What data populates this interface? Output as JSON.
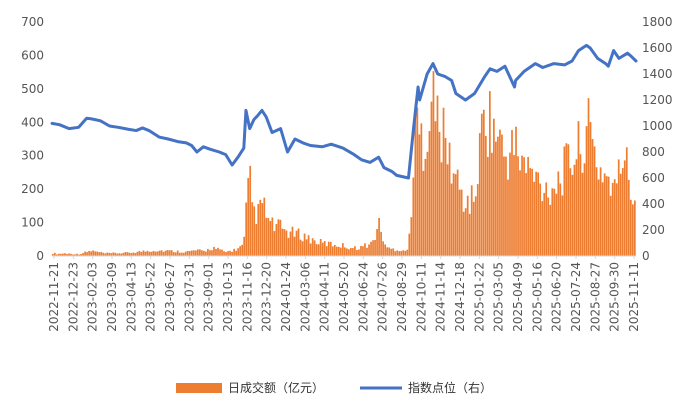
{
  "chart_data": {
    "type": "bar+line",
    "title": "",
    "legend": {
      "placement": "bottom",
      "bar_label": "日成交额（亿元）",
      "line_label": "指数点位（右）"
    },
    "colors": {
      "bar": "#ED7D31",
      "line": "#4472C4",
      "axis": "#D9D9D9",
      "text": "#595959"
    },
    "left_axis": {
      "min": 0,
      "max": 700,
      "ticks": [
        "0",
        "100",
        "200",
        "300",
        "400",
        "500",
        "600",
        "700"
      ]
    },
    "right_axis": {
      "min": 0,
      "max": 1800,
      "ticks": [
        "0",
        "200",
        "400",
        "600",
        "800",
        "1000",
        "1200",
        "1400",
        "1600",
        "1800"
      ]
    },
    "x_axis": {
      "start": "2022-11-21",
      "end": "2025-11-21",
      "tick_labels": [
        "2022-11-21",
        "2022-12-23",
        "2023-02-03",
        "2023-03-09",
        "2023-04-13",
        "2023-05-22",
        "2023-06-27",
        "2023-07-31",
        "2023-09-01",
        "2023-10-13",
        "2023-11-16",
        "2023-12-20",
        "2024-01-24",
        "2024-03-06",
        "2024-04-11",
        "2024-05-20",
        "2024-06-24",
        "2024-07-26",
        "2024-08-29",
        "2024-10-11",
        "2024-11-14",
        "2024-12-18",
        "2025-01-22",
        "2025-03-05",
        "2025-04-09",
        "2025-05-16",
        "2025-06-20",
        "2025-07-24",
        "2025-08-27",
        "2025-09-30",
        "2025-11-11"
      ]
    },
    "series": [
      {
        "name": "日成交额（亿元）",
        "axis": "left",
        "kind": "bar",
        "points": [
          [
            "2022-11-21",
            12
          ],
          [
            "2022-12-01",
            8
          ],
          [
            "2022-12-15",
            10
          ],
          [
            "2023-01-10",
            7
          ],
          [
            "2023-02-03",
            20
          ],
          [
            "2023-03-01",
            10
          ],
          [
            "2023-04-13",
            12
          ],
          [
            "2023-05-10",
            18
          ],
          [
            "2023-06-01",
            22
          ],
          [
            "2023-06-27",
            20
          ],
          [
            "2023-07-31",
            16
          ],
          [
            "2023-08-20",
            22
          ],
          [
            "2023-09-01",
            18
          ],
          [
            "2023-09-20",
            32
          ],
          [
            "2023-10-13",
            15
          ],
          [
            "2023-11-01",
            25
          ],
          [
            "2023-11-16",
            40
          ],
          [
            "2023-11-22",
            200
          ],
          [
            "2023-11-27",
            300
          ],
          [
            "2023-12-04",
            170
          ],
          [
            "2023-12-15",
            160
          ],
          [
            "2023-12-20",
            210
          ],
          [
            "2024-01-05",
            120
          ],
          [
            "2024-01-24",
            110
          ],
          [
            "2024-02-10",
            90
          ],
          [
            "2024-03-06",
            80
          ],
          [
            "2024-03-25",
            60
          ],
          [
            "2024-04-11",
            50
          ],
          [
            "2024-05-01",
            45
          ],
          [
            "2024-05-20",
            40
          ],
          [
            "2024-06-10",
            30
          ],
          [
            "2024-06-24",
            35
          ],
          [
            "2024-07-15",
            50
          ],
          [
            "2024-07-26",
            125
          ],
          [
            "2024-08-10",
            30
          ],
          [
            "2024-08-29",
            25
          ],
          [
            "2024-09-20",
            20
          ],
          [
            "2024-10-08",
            620
          ],
          [
            "2024-10-11",
            400
          ],
          [
            "2024-10-25",
            520
          ],
          [
            "2024-11-05",
            600
          ],
          [
            "2024-11-14",
            520
          ],
          [
            "2024-11-28",
            430
          ],
          [
            "2024-12-10",
            350
          ],
          [
            "2024-12-18",
            300
          ],
          [
            "2025-01-05",
            200
          ],
          [
            "2025-01-22",
            220
          ],
          [
            "2025-02-10",
            560
          ],
          [
            "2025-02-20",
            520
          ],
          [
            "2025-03-05",
            470
          ],
          [
            "2025-03-20",
            380
          ],
          [
            "2025-04-09",
            420
          ],
          [
            "2025-04-25",
            350
          ],
          [
            "2025-05-16",
            300
          ],
          [
            "2025-06-05",
            260
          ],
          [
            "2025-06-20",
            270
          ],
          [
            "2025-07-10",
            330
          ],
          [
            "2025-07-24",
            380
          ],
          [
            "2025-08-10",
            420
          ],
          [
            "2025-08-20",
            500
          ],
          [
            "2025-08-27",
            460
          ],
          [
            "2025-09-10",
            350
          ],
          [
            "2025-09-30",
            300
          ],
          [
            "2025-10-15",
            250
          ],
          [
            "2025-10-30",
            420
          ],
          [
            "2025-11-11",
            240
          ],
          [
            "2025-11-21",
            230
          ]
        ]
      },
      {
        "name": "指数点位（右）",
        "axis": "right",
        "kind": "line",
        "points": [
          [
            "2022-11-21",
            1020
          ],
          [
            "2022-12-05",
            1010
          ],
          [
            "2022-12-23",
            980
          ],
          [
            "2023-01-10",
            990
          ],
          [
            "2023-01-25",
            1060
          ],
          [
            "2023-02-03",
            1055
          ],
          [
            "2023-02-20",
            1040
          ],
          [
            "2023-03-09",
            1000
          ],
          [
            "2023-03-25",
            990
          ],
          [
            "2023-04-13",
            975
          ],
          [
            "2023-04-28",
            965
          ],
          [
            "2023-05-10",
            985
          ],
          [
            "2023-05-22",
            965
          ],
          [
            "2023-06-10",
            915
          ],
          [
            "2023-06-27",
            900
          ],
          [
            "2023-07-15",
            880
          ],
          [
            "2023-07-31",
            870
          ],
          [
            "2023-08-10",
            850
          ],
          [
            "2023-08-20",
            800
          ],
          [
            "2023-09-01",
            840
          ],
          [
            "2023-09-15",
            820
          ],
          [
            "2023-10-01",
            800
          ],
          [
            "2023-10-13",
            780
          ],
          [
            "2023-10-25",
            700
          ],
          [
            "2023-11-05",
            760
          ],
          [
            "2023-11-16",
            830
          ],
          [
            "2023-11-20",
            1120
          ],
          [
            "2023-11-27",
            980
          ],
          [
            "2023-12-05",
            1050
          ],
          [
            "2023-12-12",
            1080
          ],
          [
            "2023-12-20",
            1120
          ],
          [
            "2023-12-28",
            1070
          ],
          [
            "2024-01-08",
            950
          ],
          [
            "2024-01-24",
            980
          ],
          [
            "2024-02-06",
            800
          ],
          [
            "2024-02-20",
            900
          ],
          [
            "2024-03-06",
            870
          ],
          [
            "2024-03-20",
            850
          ],
          [
            "2024-04-11",
            840
          ],
          [
            "2024-04-28",
            860
          ],
          [
            "2024-05-20",
            830
          ],
          [
            "2024-06-10",
            780
          ],
          [
            "2024-06-24",
            740
          ],
          [
            "2024-07-10",
            720
          ],
          [
            "2024-07-26",
            760
          ],
          [
            "2024-08-05",
            680
          ],
          [
            "2024-08-20",
            650
          ],
          [
            "2024-08-29",
            620
          ],
          [
            "2024-09-20",
            600
          ],
          [
            "2024-09-30",
            1000
          ],
          [
            "2024-10-08",
            1300
          ],
          [
            "2024-10-11",
            1200
          ],
          [
            "2024-10-25",
            1400
          ],
          [
            "2024-11-05",
            1480
          ],
          [
            "2024-11-14",
            1400
          ],
          [
            "2024-11-28",
            1380
          ],
          [
            "2024-12-10",
            1350
          ],
          [
            "2024-12-18",
            1250
          ],
          [
            "2025-01-05",
            1200
          ],
          [
            "2025-01-22",
            1250
          ],
          [
            "2025-02-10",
            1380
          ],
          [
            "2025-02-20",
            1440
          ],
          [
            "2025-03-05",
            1420
          ],
          [
            "2025-03-20",
            1460
          ],
          [
            "2025-04-07",
            1300
          ],
          [
            "2025-04-09",
            1350
          ],
          [
            "2025-04-25",
            1420
          ],
          [
            "2025-05-16",
            1480
          ],
          [
            "2025-05-30",
            1450
          ],
          [
            "2025-06-20",
            1480
          ],
          [
            "2025-07-10",
            1470
          ],
          [
            "2025-07-24",
            1500
          ],
          [
            "2025-08-05",
            1580
          ],
          [
            "2025-08-20",
            1620
          ],
          [
            "2025-08-27",
            1600
          ],
          [
            "2025-09-10",
            1520
          ],
          [
            "2025-09-25",
            1480
          ],
          [
            "2025-09-30",
            1460
          ],
          [
            "2025-10-10",
            1580
          ],
          [
            "2025-10-20",
            1520
          ],
          [
            "2025-11-05",
            1560
          ],
          [
            "2025-11-11",
            1540
          ],
          [
            "2025-11-21",
            1500
          ]
        ]
      }
    ]
  }
}
